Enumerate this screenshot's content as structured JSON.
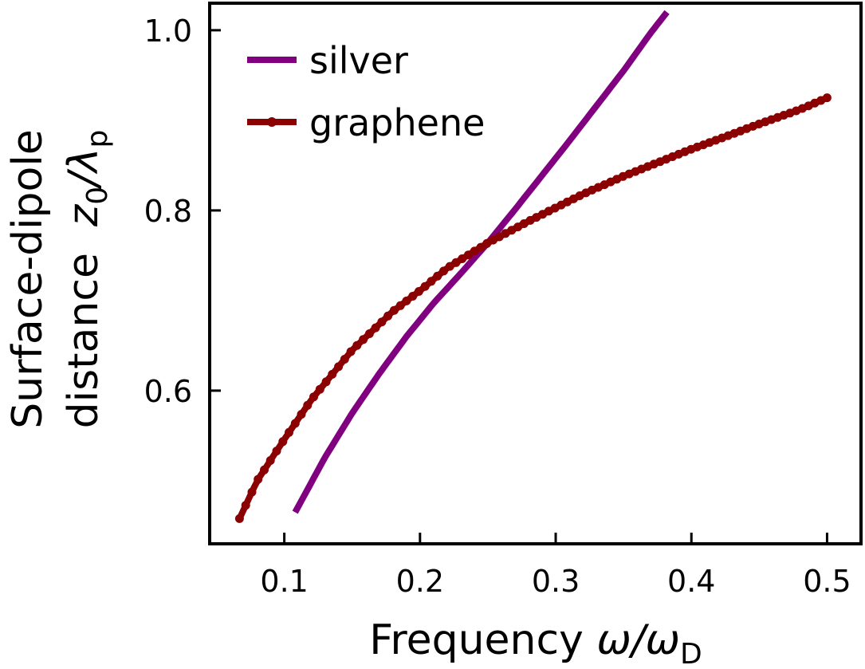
{
  "chart_data": {
    "type": "line",
    "xlabel": {
      "main": "Frequency ",
      "var": "ω/ω",
      "sub": "D"
    },
    "ylabel": {
      "line1": "Surface-dipole",
      "line2_main": "distance  ",
      "line2_var_a": "z",
      "line2_sub_a": "0",
      "line2_var_b": "/λ",
      "line2_sub_b": "p"
    },
    "xlim": [
      0.045,
      0.525
    ],
    "ylim": [
      0.43,
      1.03
    ],
    "xticks": [
      0.1,
      0.2,
      0.3,
      0.4,
      0.5
    ],
    "xtick_labels": [
      "0.1",
      "0.2",
      "0.3",
      "0.4",
      "0.5"
    ],
    "yticks": [
      0.6,
      0.8,
      1.0
    ],
    "ytick_labels": [
      "0.6",
      "0.8",
      "1.0"
    ],
    "grid": false,
    "legend_position": "top-left",
    "series": [
      {
        "name": "silver",
        "color": "#800080",
        "marker": "none",
        "x": [
          0.108,
          0.13,
          0.15,
          0.17,
          0.19,
          0.21,
          0.23,
          0.25,
          0.27,
          0.29,
          0.31,
          0.33,
          0.35,
          0.37,
          0.382
        ],
        "y": [
          0.465,
          0.526,
          0.575,
          0.619,
          0.66,
          0.697,
          0.73,
          0.764,
          0.801,
          0.839,
          0.877,
          0.916,
          0.955,
          0.997,
          1.02
        ]
      },
      {
        "name": "graphene",
        "color": "#8b0000",
        "marker": "dot",
        "x": [
          0.067,
          0.08,
          0.1,
          0.12,
          0.15,
          0.18,
          0.2,
          0.22,
          0.25,
          0.28,
          0.3,
          0.32,
          0.35,
          0.38,
          0.4,
          0.42,
          0.45,
          0.48,
          0.5
        ],
        "y": [
          0.458,
          0.5,
          0.546,
          0.59,
          0.645,
          0.688,
          0.711,
          0.736,
          0.764,
          0.788,
          0.803,
          0.818,
          0.838,
          0.856,
          0.868,
          0.879,
          0.896,
          0.912,
          0.925
        ]
      }
    ]
  }
}
